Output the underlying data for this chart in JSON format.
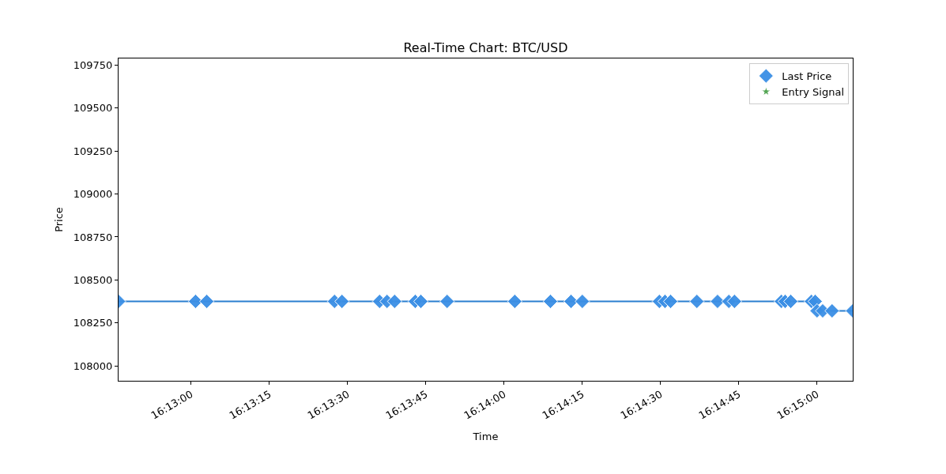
{
  "chart_data": {
    "type": "scatter",
    "title": "Real-Time Chart: BTC/USD",
    "xlabel": "Time",
    "ylabel": "Price",
    "x": [
      16.2128,
      16.2169,
      16.2175,
      16.2243,
      16.2247,
      16.2267,
      16.2271,
      16.2275,
      16.2286,
      16.2289,
      16.2303,
      16.2339,
      16.2358,
      16.2369,
      16.2375,
      16.2416,
      16.2419,
      16.2422,
      16.2436,
      16.2447,
      16.2453,
      16.2456,
      16.2481,
      16.2483,
      16.2486,
      16.2497,
      16.2499,
      16.25,
      16.2503,
      16.2508,
      16.2519
    ],
    "series": [
      {
        "type": "line",
        "color": "#2a7fcf",
        "marker": "none",
        "line_style": "solid",
        "values": [
          108375,
          108375,
          108375,
          108375,
          108375,
          108375,
          108375,
          108375,
          108375,
          108375,
          108375,
          108375,
          108375,
          108375,
          108375,
          108375,
          108375,
          108375,
          108375,
          108375,
          108375,
          108375,
          108375,
          108375,
          108375,
          108375,
          108375,
          108320,
          108320,
          108320,
          108320
        ]
      },
      {
        "name": "Last Price",
        "color": "#3b8fe5",
        "marker": "diamond",
        "values": [
          108375,
          108375,
          108375,
          108375,
          108375,
          108375,
          108375,
          108375,
          108375,
          108375,
          108375,
          108375,
          108375,
          108375,
          108375,
          108375,
          108375,
          108375,
          108375,
          108375,
          108375,
          108375,
          108375,
          108375,
          108375,
          108375,
          108375,
          108320,
          108320,
          108320,
          108320
        ]
      },
      {
        "name": "Entry Signal",
        "color": "#4ca24c",
        "marker": "star",
        "values": [
          null,
          null,
          null,
          null,
          null,
          null,
          null,
          null,
          null,
          null,
          null,
          null,
          null,
          null,
          null,
          null,
          null,
          null,
          null,
          null,
          null,
          null,
          null,
          null,
          null,
          null,
          null,
          null,
          null,
          null,
          null
        ]
      }
    ],
    "xlim": [
      16.2128,
      16.2519
    ],
    "xticks": [
      {
        "value": 16.216667,
        "label": "16:13:00"
      },
      {
        "value": 16.220833,
        "label": "16:13:15"
      },
      {
        "value": 16.225,
        "label": "16:13:30"
      },
      {
        "value": 16.229167,
        "label": "16:13:45"
      },
      {
        "value": 16.233333,
        "label": "16:14:00"
      },
      {
        "value": 16.2375,
        "label": "16:14:15"
      },
      {
        "value": 16.241667,
        "label": "16:14:30"
      },
      {
        "value": 16.245833,
        "label": "16:14:45"
      },
      {
        "value": 16.25,
        "label": "16:15:00"
      }
    ],
    "ylim": [
      107913,
      109789
    ],
    "yticks": [
      108000,
      108250,
      108500,
      108750,
      109000,
      109250,
      109500,
      109750
    ],
    "grid": false,
    "legend": "top right"
  }
}
